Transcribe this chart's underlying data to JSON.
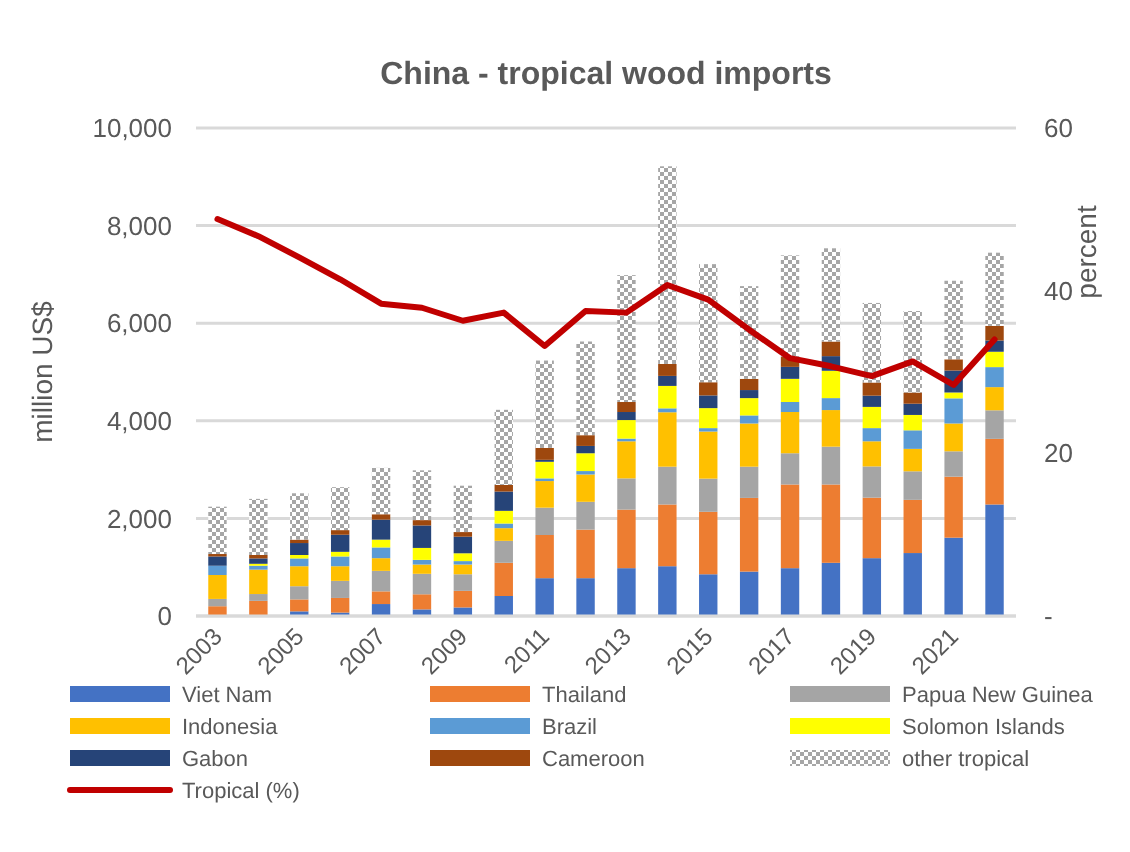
{
  "chart_data": {
    "type": "bar",
    "title": "China - tropical wood imports",
    "ylabel": "million US$",
    "y2label": "percent",
    "categories": [
      "2003",
      null,
      "2005",
      null,
      "2007",
      null,
      "2009",
      null,
      "2011",
      null,
      "2013",
      null,
      "2015",
      null,
      "2017",
      null,
      "2019",
      null,
      "2021",
      null
    ],
    "stacked": true,
    "grid": "y",
    "legend": "bottom",
    "ylim": [
      0,
      10000
    ],
    "yticks": [
      {
        "value": 0,
        "label": "0"
      },
      {
        "value": 2000,
        "label": "2,000"
      },
      {
        "value": 4000,
        "label": "4,000"
      },
      {
        "value": 6000,
        "label": "6,000"
      },
      {
        "value": 8000,
        "label": "8,000"
      },
      {
        "value": 10000,
        "label": "10,000"
      }
    ],
    "y2lim": [
      0,
      60
    ],
    "y2ticks": [
      {
        "value": 0,
        "label": "-"
      },
      20,
      40,
      60
    ],
    "series": [
      {
        "name": "Viet Nam",
        "color": "#4472c4",
        "values": [
          0,
          0,
          95,
          70,
          245,
          135,
          175,
          410,
          775,
          775,
          980,
          1020,
          855,
          910,
          980,
          1090,
          1185,
          1290,
          1605,
          2285
        ]
      },
      {
        "name": "Thailand",
        "color": "#ed7d31",
        "values": [
          200,
          310,
          245,
          300,
          260,
          310,
          340,
          680,
          885,
          995,
          1200,
          1265,
          1280,
          1510,
          1715,
          1605,
          1240,
          1090,
          1250,
          1345
        ]
      },
      {
        "name": "Papua New Guinea",
        "color": "#a5a5a5",
        "values": [
          150,
          140,
          270,
          350,
          420,
          420,
          340,
          450,
          560,
          570,
          640,
          775,
          680,
          640,
          640,
          775,
          640,
          585,
          520,
          585
        ]
      },
      {
        "name": "Indonesia",
        "color": "#ffc000",
        "values": [
          490,
          500,
          410,
          300,
          260,
          190,
          200,
          260,
          545,
          560,
          760,
          1115,
          965,
          885,
          845,
          750,
          515,
          460,
          570,
          475
        ]
      },
      {
        "name": "Brazil",
        "color": "#5b9bd5",
        "values": [
          190,
          80,
          160,
          200,
          220,
          95,
          70,
          95,
          55,
          70,
          55,
          80,
          70,
          165,
          205,
          245,
          270,
          380,
          515,
          410
        ]
      },
      {
        "name": "Solomon Islands",
        "color": "#ffff00",
        "values": [
          0,
          40,
          70,
          95,
          160,
          245,
          160,
          260,
          340,
          365,
          380,
          460,
          410,
          355,
          475,
          560,
          435,
          315,
          120,
          315
        ]
      },
      {
        "name": "Gabon",
        "color": "#264478",
        "values": [
          190,
          110,
          245,
          350,
          410,
          460,
          340,
          395,
          40,
          150,
          165,
          205,
          260,
          165,
          245,
          300,
          230,
          230,
          450,
          230
        ]
      },
      {
        "name": "Cameroon",
        "color": "#9e480e",
        "values": [
          50,
          70,
          70,
          95,
          110,
          110,
          95,
          135,
          245,
          220,
          205,
          245,
          270,
          230,
          205,
          300,
          270,
          230,
          230,
          300
        ]
      },
      {
        "name": "other tropical",
        "color": "#a6a6a6",
        "values": [
          970,
          1150,
          950,
          880,
          950,
          1020,
          950,
          1540,
          1790,
          1920,
          2600,
          4050,
          2420,
          1900,
          2080,
          1910,
          1630,
          1670,
          1610,
          1500
        ]
      },
      {
        "name": "Tropical (%)",
        "type": "line",
        "axis": "y2",
        "color": "#c00000",
        "values": [
          48.8,
          46.7,
          44.1,
          41.4,
          38.4,
          37.9,
          36.3,
          37.3,
          33.2,
          37.5,
          37.3,
          40.7,
          38.9,
          35.2,
          31.7,
          30.7,
          29.5,
          31.3,
          28.4,
          34.0
        ]
      }
    ]
  }
}
